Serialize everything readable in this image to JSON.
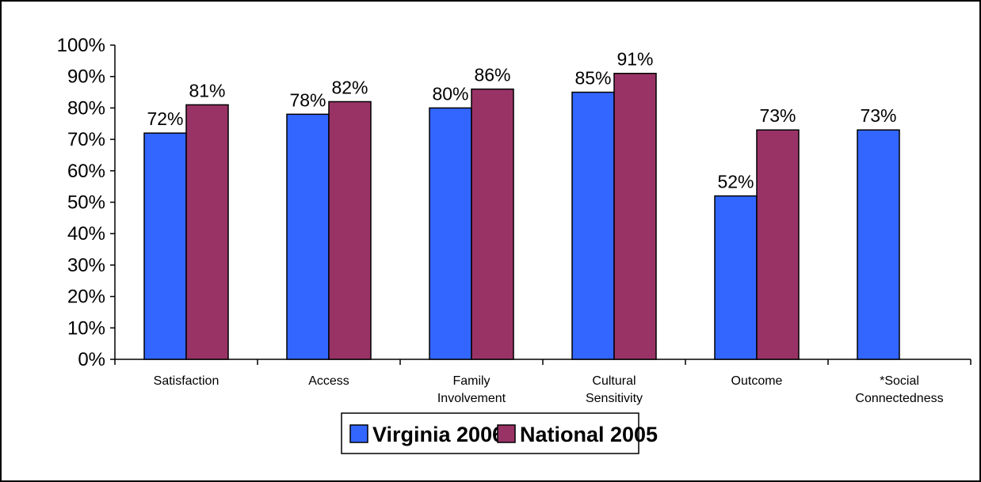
{
  "chart_data": {
    "type": "bar",
    "categories": [
      [
        "Satisfaction"
      ],
      [
        "Access"
      ],
      [
        "Family",
        "Involvement"
      ],
      [
        "Cultural",
        "Sensitivity"
      ],
      [
        "Outcome"
      ],
      [
        "*Social",
        "Connectedness"
      ]
    ],
    "series": [
      {
        "name": "Virginia 2006",
        "color": "#3366ff",
        "values": [
          72,
          78,
          80,
          85,
          52,
          73
        ],
        "labels": [
          "72%",
          "78%",
          "80%",
          "85%",
          "52%",
          "73%"
        ]
      },
      {
        "name": "National 2005",
        "color": "#993366",
        "values": [
          81,
          82,
          86,
          91,
          73,
          null
        ],
        "labels": [
          "81%",
          "82%",
          "86%",
          "91%",
          "73%",
          ""
        ]
      }
    ],
    "yticks": [
      "0%",
      "10%",
      "20%",
      "30%",
      "40%",
      "50%",
      "60%",
      "70%",
      "80%",
      "90%",
      "100%"
    ],
    "ylim": [
      0,
      100
    ],
    "title": "",
    "xlabel": "",
    "ylabel": "",
    "grid": false,
    "legend_position": "bottom-center"
  }
}
